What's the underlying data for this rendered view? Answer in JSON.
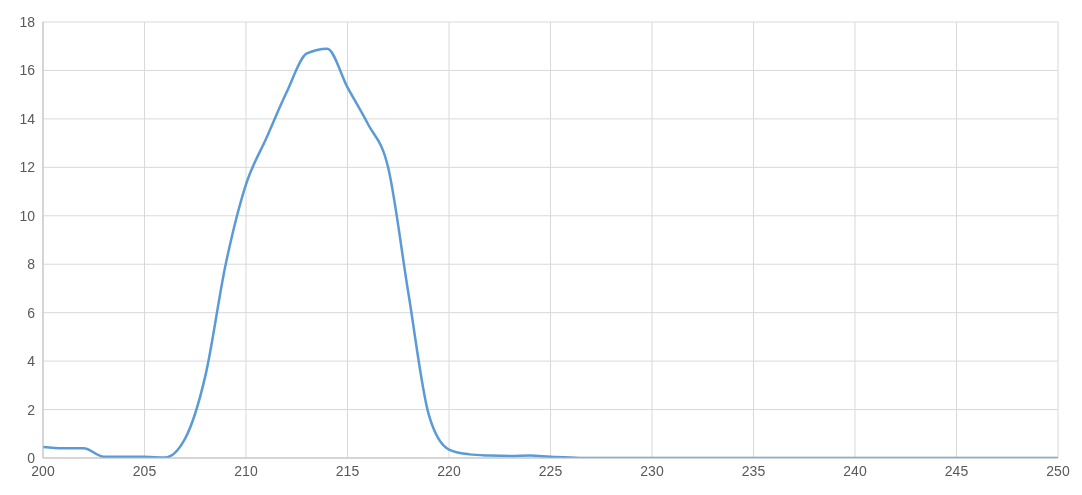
{
  "chart_data": {
    "type": "line",
    "x": [
      200,
      201,
      202,
      203,
      204,
      205,
      206,
      207,
      208,
      209,
      210,
      211,
      212,
      213,
      214,
      215,
      216,
      217,
      218,
      219,
      220,
      221,
      222,
      223,
      224,
      225,
      226,
      227,
      228,
      229,
      230,
      235,
      240,
      245,
      250
    ],
    "series": [
      {
        "color": "#5b9bd5",
        "values": [
          0.45,
          0.4,
          0.4,
          0.05,
          0.05,
          0.05,
          0.02,
          0.8,
          3.4,
          8.0,
          11.3,
          13.2,
          15.1,
          16.7,
          16.9,
          15.3,
          13.8,
          12.0,
          6.8,
          1.8,
          0.35,
          0.15,
          0.1,
          0.08,
          0.1,
          0.05,
          0.02,
          0,
          0,
          0,
          0,
          0,
          0,
          0,
          0
        ]
      }
    ],
    "xlim": [
      200,
      250
    ],
    "xticks": [
      200,
      205,
      210,
      215,
      220,
      225,
      230,
      235,
      240,
      245,
      250
    ],
    "ylim": [
      0,
      18
    ],
    "yticks": [
      0,
      2,
      4,
      6,
      8,
      10,
      12,
      14,
      16,
      18
    ],
    "grid": true,
    "marker": "none",
    "line_style": "solid",
    "legend": false
  }
}
